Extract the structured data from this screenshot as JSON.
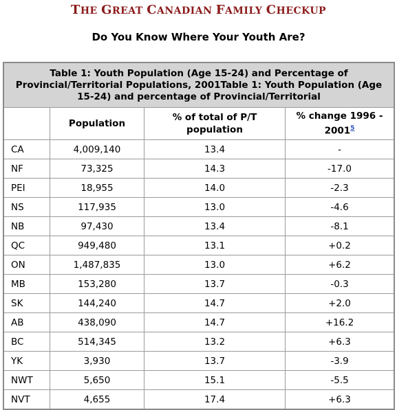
{
  "site": {
    "title": "The Great Canadian Family Checkup"
  },
  "page": {
    "heading": "Do You Know Where Your Youth Are?"
  },
  "table": {
    "caption": "Table 1: Youth Population (Age 15-24) and Percentage of Provincial/Territorial Populations, 2001Table 1: Youth Population (Age 15-24) and percentage of Provincial/Territorial",
    "headers": {
      "region": "",
      "population": "Population",
      "pct_total": "% of total of P/T population",
      "pct_change": "% change 1996 - 2001",
      "footnote": "5"
    },
    "rows": [
      {
        "region": "CA",
        "population": "4,009,140",
        "pct": "13.4",
        "change": "-"
      },
      {
        "region": "NF",
        "population": "73,325",
        "pct": "14.3",
        "change": "-17.0"
      },
      {
        "region": "PEI",
        "population": "18,955",
        "pct": "14.0",
        "change": "-2.3"
      },
      {
        "region": "NS",
        "population": "117,935",
        "pct": "13.0",
        "change": "-4.6"
      },
      {
        "region": "NB",
        "population": "97,430",
        "pct": "13.4",
        "change": "-8.1"
      },
      {
        "region": "QC",
        "population": "949,480",
        "pct": "13.1",
        "change": "+0.2"
      },
      {
        "region": "ON",
        "population": "1,487,835",
        "pct": "13.0",
        "change": "+6.2"
      },
      {
        "region": "MB",
        "population": "153,280",
        "pct": "13.7",
        "change": "-0.3"
      },
      {
        "region": "SK",
        "population": "144,240",
        "pct": "14.7",
        "change": "+2.0"
      },
      {
        "region": "AB",
        "population": "438,090",
        "pct": "14.7",
        "change": "+16.2"
      },
      {
        "region": "BC",
        "population": "514,345",
        "pct": "13.2",
        "change": "+6.3"
      },
      {
        "region": "YK",
        "population": "3,930",
        "pct": "13.7",
        "change": "-3.9"
      },
      {
        "region": "NWT",
        "population": "5,650",
        "pct": "15.1",
        "change": "-5.5"
      },
      {
        "region": "NVT",
        "population": "4,655",
        "pct": "17.4",
        "change": "+6.3"
      }
    ]
  },
  "colors": {
    "title": "#8b1a1a",
    "caption_bg": "#d4d4d4",
    "link": "#2a4dbf"
  }
}
